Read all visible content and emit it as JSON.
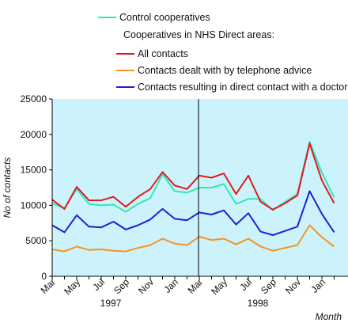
{
  "chart_data": {
    "type": "line",
    "xlabel": "Month",
    "ylabel": "No of contacts",
    "ylim": [
      0,
      25000
    ],
    "yticks": [
      0,
      5000,
      10000,
      15000,
      20000,
      25000
    ],
    "x_tick_labels": [
      "Mar",
      "May",
      "Jul",
      "Sep",
      "Nov",
      "Jan",
      "Mar",
      "May",
      "Jul",
      "Sep",
      "Nov",
      "Jan"
    ],
    "year_labels": [
      "1997",
      "1998"
    ],
    "divider_label": "Mar 1998",
    "legend": {
      "control_label": "Control cooperatives",
      "group_heading": "Cooperatives in NHS Direct areas:",
      "placement": "top"
    },
    "background_color": "#ccf3fb",
    "x": [
      "Mar 1997",
      "Apr 1997",
      "May 1997",
      "Jun 1997",
      "Jul 1997",
      "Aug 1997",
      "Sep 1997",
      "Oct 1997",
      "Nov 1997",
      "Dec 1997",
      "Jan 1998",
      "Feb 1998",
      "Mar 1998",
      "Apr 1998",
      "May 1998",
      "Jun 1998",
      "Jul 1998",
      "Aug 1998",
      "Sep 1998",
      "Oct 1998",
      "Nov 1998",
      "Dec 1998",
      "Jan 1999",
      "Feb 1999"
    ],
    "series": [
      {
        "name": "Control cooperatives",
        "color": "#33e6b8",
        "values": [
          10300,
          9600,
          12300,
          10200,
          10000,
          10100,
          9100,
          10200,
          11000,
          14400,
          12000,
          11800,
          12500,
          12500,
          13000,
          10200,
          10900,
          10900,
          9300,
          10500,
          11600,
          19000,
          14600,
          11100
        ]
      },
      {
        "name": "All contacts",
        "color": "#e31a1c",
        "values": [
          10800,
          9500,
          12600,
          10700,
          10700,
          11200,
          9800,
          11200,
          12300,
          14700,
          12800,
          12300,
          14200,
          13900,
          14500,
          11600,
          14200,
          10500,
          9400,
          10300,
          11400,
          18700,
          13500,
          10300
        ]
      },
      {
        "name": "Contacts dealt with by telephone advice",
        "color": "#f7931e",
        "values": [
          3800,
          3500,
          4200,
          3700,
          3800,
          3600,
          3500,
          4000,
          4400,
          5300,
          4600,
          4400,
          5600,
          5100,
          5300,
          4500,
          5300,
          4200,
          3600,
          4000,
          4400,
          7200,
          5500,
          4200
        ]
      },
      {
        "name": "Contacts resulting in direct contact with a doctor",
        "color": "#1f1fd6",
        "values": [
          7200,
          6200,
          8600,
          7000,
          6900,
          7700,
          6600,
          7200,
          8000,
          9500,
          8100,
          7900,
          9000,
          8700,
          9300,
          7300,
          8900,
          6300,
          5800,
          6400,
          7000,
          12000,
          8800,
          6200
        ]
      }
    ]
  }
}
